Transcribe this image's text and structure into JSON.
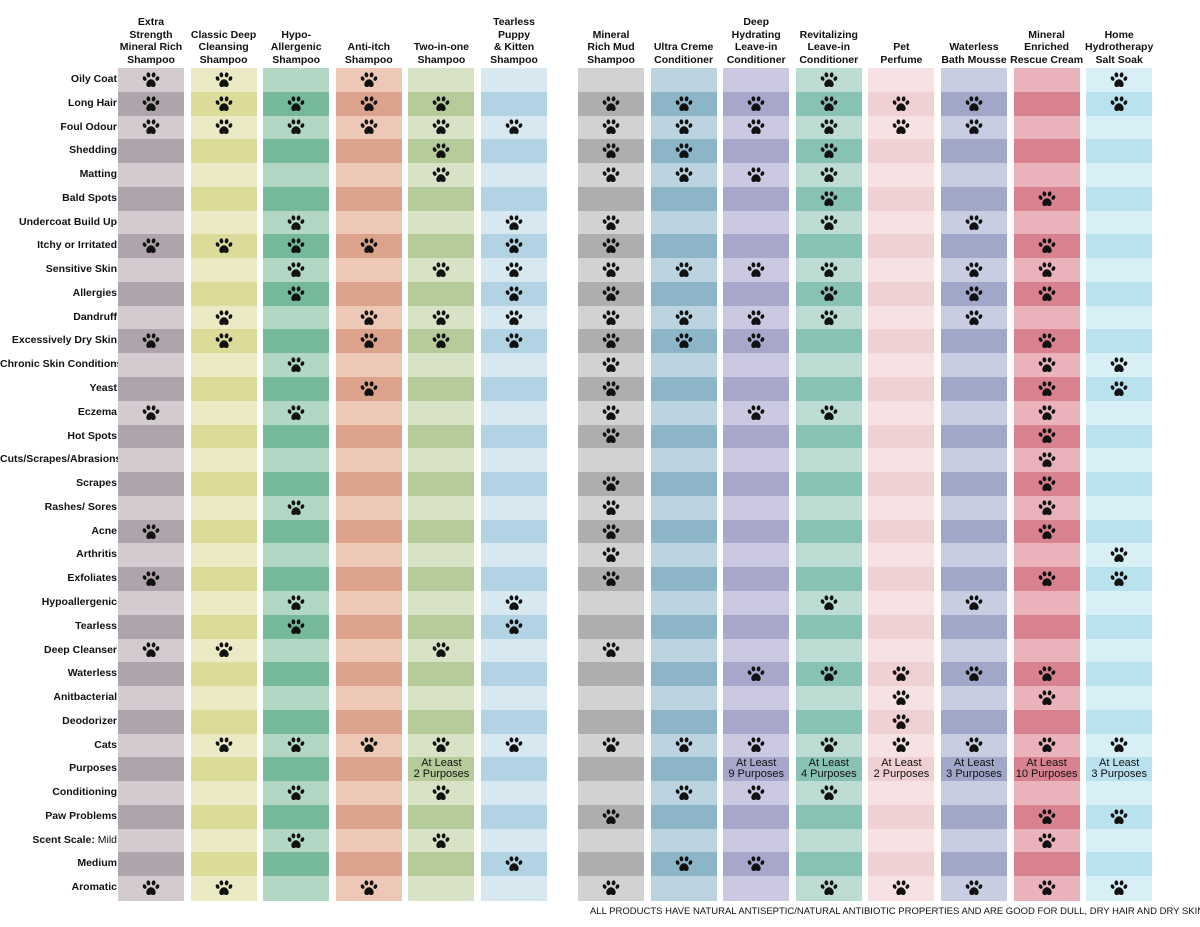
{
  "chart_data": {
    "type": "table",
    "columns": [
      {
        "name": "Extra Strength Mineral Rich Shampoo",
        "lines": [
          "Extra",
          "Strength",
          "Mineral Rich",
          "Shampoo"
        ],
        "color_dark": "#afa4ab",
        "color_light": "#d3cbd0",
        "group": 0
      },
      {
        "name": "Classic Deep Cleansing Shampoo",
        "lines": [
          "Classic Deep",
          "Cleansing",
          "Shampoo"
        ],
        "color_dark": "#dcdb99",
        "color_light": "#ebeac4",
        "group": 0
      },
      {
        "name": "Hypo-Allergenic Shampoo",
        "lines": [
          "Hypo-",
          "Allergenic",
          "Shampoo"
        ],
        "color_dark": "#75b99a",
        "color_light": "#b3d7c5",
        "group": 0
      },
      {
        "name": "Anti-itch Shampoo",
        "lines": [
          "Anti-itch",
          "Shampoo"
        ],
        "color_dark": "#dba38c",
        "color_light": "#edc8b7",
        "group": 0
      },
      {
        "name": "Two-in-one Shampoo",
        "lines": [
          "Two-in-one",
          "Shampoo"
        ],
        "color_dark": "#b5cb9a",
        "color_light": "#d7e2c6",
        "group": 0
      },
      {
        "name": "Tearless Puppy & Kitten Shampoo",
        "lines": [
          "Tearless",
          "Puppy",
          "& Kitten",
          "Shampoo"
        ],
        "color_dark": "#b1d3e3",
        "color_light": "#d7e8f1",
        "group": 0
      },
      {
        "name": "Mineral Rich Mud Shampoo",
        "lines": [
          "Mineral",
          "Rich Mud",
          "Shampoo"
        ],
        "color_dark": "#b0adad",
        "color_light": "#d3d1d1",
        "group": 1
      },
      {
        "name": "Ultra Creme Conditioner",
        "lines": [
          "Ultra Creme",
          "Conditioner"
        ],
        "color_dark": "#8cb6c8",
        "color_light": "#bcd4df",
        "group": 1
      },
      {
        "name": "Deep Hydrating Leave-in Conditioner",
        "lines": [
          "Deep",
          "Hydrating",
          "Leave-in",
          "Conditioner"
        ],
        "color_dark": "#a7a6cb",
        "color_light": "#cac9e1",
        "group": 1
      },
      {
        "name": "Revitalizing Leave-in Conditioner",
        "lines": [
          "Revitalizing",
          "Leave-in",
          "Conditioner"
        ],
        "color_dark": "#88c2b5",
        "color_light": "#bcdcd4",
        "group": 1
      },
      {
        "name": "Pet Perfume",
        "lines": [
          "Pet",
          "Perfume"
        ],
        "color_dark": "#efd0d3",
        "color_light": "#f6e2e4",
        "group": 1
      },
      {
        "name": "Waterless Bath Mousse",
        "lines": [
          "Waterless",
          "Bath Mousse"
        ],
        "color_dark": "#a0a7c9",
        "color_light": "#c9cde2",
        "group": 1
      },
      {
        "name": "Mineral Enriched Rescue Cream",
        "lines": [
          "Mineral",
          "Enriched",
          "Rescue Cream"
        ],
        "color_dark": "#d8818f",
        "color_light": "#eab2bb",
        "group": 1
      },
      {
        "name": "Home Hydrotherapy Salt Soak",
        "lines": [
          "Home",
          "Hydrotherapy",
          "Salt Soak"
        ],
        "color_dark": "#b9e1ee",
        "color_light": "#d9eff6",
        "group": 1
      }
    ],
    "rows": [
      {
        "label": "Oily Coat",
        "paws": [
          1,
          1,
          0,
          1,
          0,
          0,
          0,
          0,
          0,
          1,
          0,
          0,
          0,
          1
        ]
      },
      {
        "label": "Long Hair",
        "paws": [
          1,
          1,
          1,
          1,
          1,
          0,
          1,
          1,
          1,
          1,
          1,
          1,
          0,
          1
        ]
      },
      {
        "label": "Foul Odour",
        "paws": [
          1,
          1,
          1,
          1,
          1,
          1,
          1,
          1,
          1,
          1,
          1,
          1,
          0,
          0
        ]
      },
      {
        "label": "Shedding",
        "paws": [
          0,
          0,
          0,
          0,
          1,
          0,
          1,
          1,
          0,
          1,
          0,
          0,
          0,
          0
        ]
      },
      {
        "label": "Matting",
        "paws": [
          0,
          0,
          0,
          0,
          1,
          0,
          1,
          1,
          1,
          1,
          0,
          0,
          0,
          0
        ]
      },
      {
        "label": "Bald Spots",
        "paws": [
          0,
          0,
          0,
          0,
          0,
          0,
          0,
          0,
          0,
          1,
          0,
          0,
          1,
          0
        ]
      },
      {
        "label": "Undercoat Build Up",
        "paws": [
          0,
          0,
          1,
          0,
          0,
          1,
          1,
          0,
          0,
          1,
          0,
          1,
          0,
          0
        ]
      },
      {
        "label": "Itchy or Irritated",
        "paws": [
          1,
          1,
          1,
          1,
          0,
          1,
          1,
          0,
          0,
          0,
          0,
          0,
          1,
          0
        ]
      },
      {
        "label": "Sensitive Skin",
        "paws": [
          0,
          0,
          1,
          0,
          1,
          1,
          1,
          1,
          1,
          1,
          0,
          1,
          1,
          0
        ]
      },
      {
        "label": "Allergies",
        "paws": [
          0,
          0,
          1,
          0,
          0,
          1,
          1,
          0,
          0,
          1,
          0,
          1,
          1,
          0
        ]
      },
      {
        "label": "Dandruff",
        "paws": [
          0,
          1,
          0,
          1,
          1,
          1,
          1,
          1,
          1,
          1,
          0,
          1,
          0,
          0
        ]
      },
      {
        "label": "Excessively Dry Skin",
        "paws": [
          1,
          1,
          0,
          1,
          1,
          1,
          1,
          1,
          1,
          0,
          0,
          0,
          1,
          0
        ]
      },
      {
        "label": "Chronic Skin Conditions",
        "paws": [
          0,
          0,
          1,
          0,
          0,
          0,
          1,
          0,
          0,
          0,
          0,
          0,
          1,
          1
        ]
      },
      {
        "label": "Yeast",
        "paws": [
          0,
          0,
          0,
          1,
          0,
          0,
          1,
          0,
          0,
          0,
          0,
          0,
          1,
          1
        ]
      },
      {
        "label": "Eczema",
        "paws": [
          1,
          0,
          1,
          0,
          0,
          0,
          1,
          0,
          1,
          1,
          0,
          0,
          1,
          0
        ]
      },
      {
        "label": "Hot Spots",
        "paws": [
          0,
          0,
          0,
          0,
          0,
          0,
          1,
          0,
          0,
          0,
          0,
          0,
          1,
          0
        ]
      },
      {
        "label": "Cuts/Scrapes/Abrasions",
        "paws": [
          0,
          0,
          0,
          0,
          0,
          0,
          0,
          0,
          0,
          0,
          0,
          0,
          1,
          0
        ]
      },
      {
        "label": "Scrapes",
        "paws": [
          0,
          0,
          0,
          0,
          0,
          0,
          1,
          0,
          0,
          0,
          0,
          0,
          1,
          0
        ]
      },
      {
        "label": "Rashes/ Sores",
        "paws": [
          0,
          0,
          1,
          0,
          0,
          0,
          1,
          0,
          0,
          0,
          0,
          0,
          1,
          0
        ]
      },
      {
        "label": "Acne",
        "paws": [
          1,
          0,
          0,
          0,
          0,
          0,
          1,
          0,
          0,
          0,
          0,
          0,
          1,
          0
        ]
      },
      {
        "label": "Arthritis",
        "paws": [
          0,
          0,
          0,
          0,
          0,
          0,
          1,
          0,
          0,
          0,
          0,
          0,
          0,
          1
        ]
      },
      {
        "label": "Exfoliates",
        "paws": [
          1,
          0,
          0,
          0,
          0,
          0,
          1,
          0,
          0,
          0,
          0,
          0,
          1,
          1
        ]
      },
      {
        "label": "Hypoallergenic",
        "paws": [
          0,
          0,
          1,
          0,
          0,
          1,
          0,
          0,
          0,
          1,
          0,
          1,
          0,
          0
        ]
      },
      {
        "label": "Tearless",
        "paws": [
          0,
          0,
          1,
          0,
          0,
          1,
          0,
          0,
          0,
          0,
          0,
          0,
          0,
          0
        ]
      },
      {
        "label": "Deep Cleanser",
        "paws": [
          1,
          1,
          0,
          0,
          1,
          0,
          1,
          0,
          0,
          0,
          0,
          0,
          0,
          0
        ]
      },
      {
        "label": "Waterless",
        "paws": [
          0,
          0,
          0,
          0,
          0,
          0,
          0,
          0,
          1,
          1,
          1,
          1,
          1,
          0
        ]
      },
      {
        "label": "Anitbacterial",
        "paws": [
          0,
          0,
          0,
          0,
          0,
          0,
          0,
          0,
          0,
          0,
          1,
          0,
          1,
          0
        ]
      },
      {
        "label": "Deodorizer",
        "paws": [
          0,
          0,
          0,
          0,
          0,
          0,
          0,
          0,
          0,
          0,
          1,
          0,
          0,
          0
        ]
      },
      {
        "label": "Cats",
        "paws": [
          0,
          1,
          1,
          1,
          1,
          1,
          1,
          1,
          1,
          1,
          1,
          1,
          1,
          1
        ]
      },
      {
        "label": "Purposes",
        "paws": [
          0,
          0,
          0,
          0,
          0,
          0,
          0,
          0,
          0,
          0,
          0,
          0,
          0,
          0
        ],
        "texts": [
          "",
          "",
          "",
          "",
          "At Least\n2 Purposes",
          "",
          "",
          "",
          "At Least\n9 Purposes",
          "At Least\n4 Purposes",
          "At Least\n2 Purposes",
          "At Least\n3 Purposes",
          "At Least\n10 Purposes",
          "At Least\n3 Purposes"
        ]
      },
      {
        "label": "Conditioning",
        "paws": [
          0,
          0,
          1,
          0,
          1,
          0,
          0,
          1,
          1,
          1,
          0,
          0,
          0,
          0
        ]
      },
      {
        "label": "Paw Problems",
        "paws": [
          0,
          0,
          0,
          0,
          0,
          0,
          1,
          0,
          0,
          0,
          0,
          0,
          1,
          1
        ]
      },
      {
        "label": "Scent Scale:",
        "sublabel": "Mild",
        "paws": [
          0,
          0,
          1,
          0,
          1,
          0,
          0,
          0,
          0,
          0,
          0,
          0,
          1,
          0
        ]
      },
      {
        "label": "Medium",
        "paws": [
          0,
          0,
          0,
          0,
          0,
          1,
          0,
          1,
          1,
          0,
          0,
          0,
          0,
          0
        ]
      },
      {
        "label": "Aromatic",
        "paws": [
          1,
          1,
          0,
          1,
          0,
          0,
          1,
          0,
          0,
          1,
          1,
          1,
          1,
          1
        ]
      }
    ],
    "paw_color": "#111111"
  },
  "footer": "ALL PRODUCTS HAVE NATURAL ANTISEPTIC/NATURAL ANTIBIOTIC PROPERTIES AND ARE GOOD FOR DULL, DRY HAIR AND DRY SKIN."
}
